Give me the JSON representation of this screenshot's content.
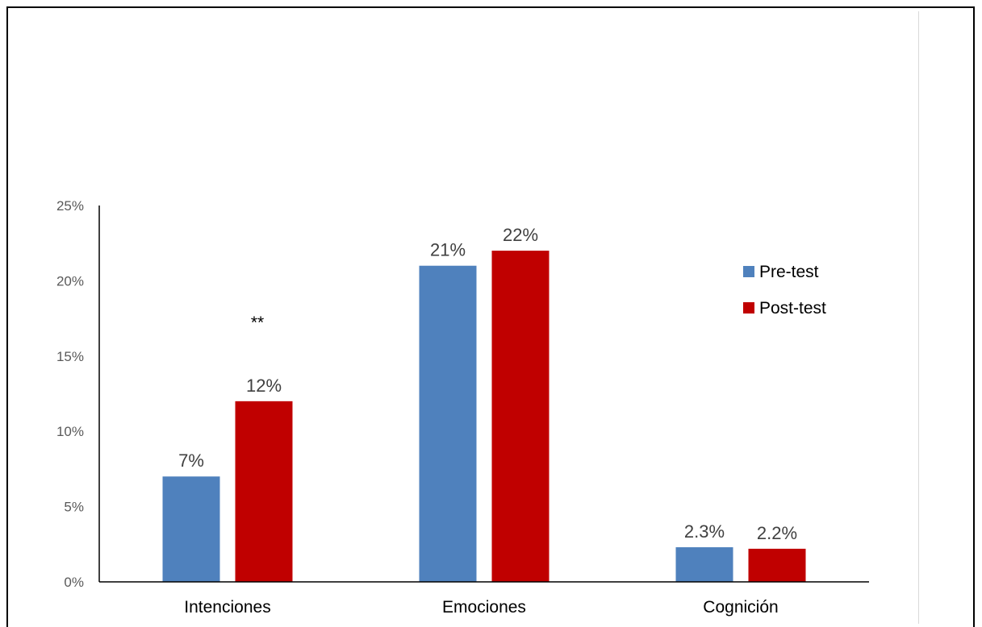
{
  "chart_data": {
    "type": "bar",
    "categories": [
      "Intenciones",
      "Emociones",
      "Cognición"
    ],
    "series": [
      {
        "name": "Pre-test",
        "values": [
          7,
          21,
          2.3
        ],
        "labels": [
          "7%",
          "21%",
          "2.3%"
        ],
        "color": "#4F81BD"
      },
      {
        "name": "Post-test",
        "values": [
          12,
          22,
          2.2
        ],
        "labels": [
          "12%",
          "22%",
          "2.2%"
        ],
        "color": "#C00000"
      }
    ],
    "yticks": [
      "0%",
      "5%",
      "10%",
      "15%",
      "20%",
      "25%"
    ],
    "ylim": [
      0,
      25
    ],
    "legend": "right",
    "grid": false,
    "annotations": [
      {
        "text": "**",
        "category": "Intenciones",
        "series": "Post-test",
        "y": 17.5
      }
    ]
  }
}
